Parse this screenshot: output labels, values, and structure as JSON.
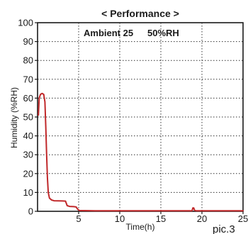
{
  "chart_data": {
    "type": "line",
    "title": "< Performance >",
    "annotation_left": "Ambient 25",
    "annotation_right": "50%RH",
    "xlabel": "Time(h)",
    "ylabel": "Humidity (%RH)",
    "caption": "pic.3",
    "xlim": [
      0,
      25
    ],
    "ylim": [
      0,
      100
    ],
    "x_ticks": [
      5,
      10,
      15,
      20,
      25
    ],
    "y_ticks": [
      0,
      10,
      20,
      30,
      40,
      50,
      60,
      70,
      80,
      90,
      100
    ],
    "grid": true,
    "line_color": "#c0282a",
    "series": [
      {
        "points": [
          [
            0.1,
            51
          ],
          [
            0.2,
            60
          ],
          [
            0.35,
            62
          ],
          [
            0.55,
            62.5
          ],
          [
            0.75,
            62
          ],
          [
            0.9,
            58
          ],
          [
            1.0,
            45
          ],
          [
            1.1,
            30
          ],
          [
            1.2,
            18
          ],
          [
            1.3,
            10
          ],
          [
            1.45,
            7
          ],
          [
            1.7,
            6
          ],
          [
            2.0,
            5.6
          ],
          [
            3.0,
            5.5
          ],
          [
            3.4,
            5.4
          ],
          [
            3.6,
            3
          ],
          [
            3.9,
            2.6
          ],
          [
            4.4,
            2.5
          ],
          [
            4.7,
            2.3
          ],
          [
            4.9,
            1.0
          ],
          [
            5.1,
            0.4
          ],
          [
            7,
            0.3
          ],
          [
            10,
            0.3
          ],
          [
            15,
            0.3
          ],
          [
            18.8,
            0.3
          ],
          [
            18.9,
            1.8
          ],
          [
            19.0,
            1.8
          ],
          [
            19.1,
            0.5
          ],
          [
            19.3,
            0.3
          ],
          [
            22,
            0.3
          ],
          [
            25,
            0.3
          ]
        ]
      }
    ]
  }
}
